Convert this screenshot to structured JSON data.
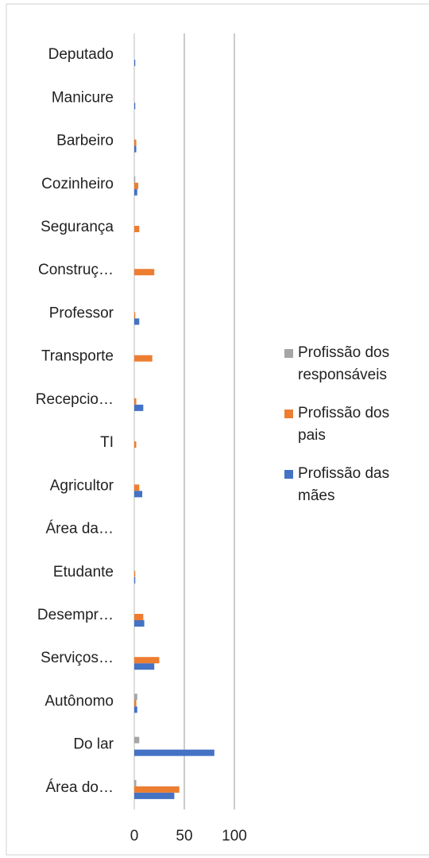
{
  "chart_data": {
    "type": "bar",
    "orientation": "horizontal",
    "categories": [
      "Deputado",
      "Manicure",
      "Barbeiro",
      "Cozinheiro",
      "Segurança",
      "Construç…",
      "Professor",
      "Transporte",
      "Recepcio…",
      "TI",
      "Agricultor",
      "Área da…",
      "Etudante",
      "Desempr…",
      "Serviços…",
      "Autônomo",
      "Do lar",
      "Área do…"
    ],
    "series": [
      {
        "name": "Profissão dos responsáveis",
        "color": "#a5a5a5",
        "values": [
          0,
          0,
          0,
          1,
          0,
          0,
          0,
          0,
          0,
          0,
          0,
          0,
          0,
          0,
          0,
          3,
          5,
          2
        ]
      },
      {
        "name": "Profissão dos pais",
        "color": "#ed7d31",
        "values": [
          0,
          0,
          2,
          4,
          5,
          20,
          1,
          18,
          2,
          2,
          5,
          0,
          1,
          9,
          25,
          2,
          0,
          45
        ]
      },
      {
        "name": "Profissão das mães",
        "color": "#4472c4",
        "values": [
          1,
          1,
          2,
          3,
          0,
          0,
          5,
          0,
          9,
          0,
          8,
          0,
          1,
          10,
          20,
          3,
          80,
          40
        ]
      }
    ],
    "xlim": [
      0,
      100
    ],
    "xticks": [
      0,
      50,
      100
    ],
    "grid": true,
    "legend": "right"
  }
}
